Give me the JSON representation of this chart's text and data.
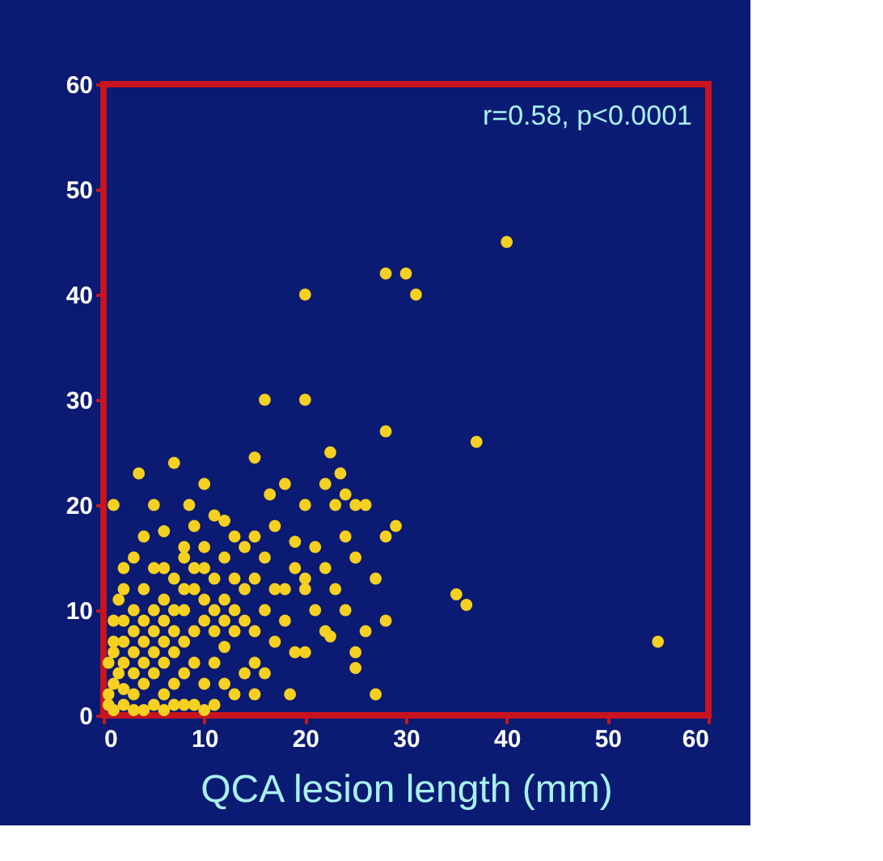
{
  "chart_data": {
    "type": "scatter",
    "xlabel": "QCA lesion length (mm)",
    "annotations": [
      "r=0.58, p<0.0001"
    ],
    "xlim": [
      0,
      60
    ],
    "xticks": [
      0,
      10,
      20,
      30,
      40,
      50,
      60
    ],
    "ylim": [
      0,
      60
    ],
    "yticks": [
      0,
      10,
      20,
      30,
      40,
      50,
      60
    ],
    "grid": false,
    "marker": "circle",
    "series": [
      {
        "color": "#f5d020",
        "x": [
          40,
          28,
          30,
          31,
          20,
          16,
          20,
          28,
          37,
          22.5,
          23.5,
          24,
          3.5,
          7,
          15,
          10,
          1,
          5,
          8.5,
          20,
          23,
          25,
          26,
          22,
          18,
          16.5,
          17,
          19,
          28,
          29,
          35,
          36,
          55,
          27,
          25,
          25,
          18.5,
          22.5,
          20,
          15,
          12,
          14,
          13,
          11,
          12,
          14,
          15,
          10,
          8,
          6,
          4,
          3,
          5,
          7,
          9,
          10,
          8,
          6,
          5,
          4,
          3,
          2,
          1.5,
          1,
          0.5,
          0.5,
          1,
          2,
          3,
          4,
          5,
          6,
          7,
          8,
          9,
          10,
          11,
          12,
          13,
          9,
          8,
          7,
          6,
          5,
          4,
          3,
          2,
          3,
          4,
          5,
          6,
          7,
          6,
          5,
          4,
          3,
          2,
          3,
          4,
          2,
          1,
          1,
          2,
          7,
          8,
          9,
          10,
          11,
          12,
          13,
          14,
          16,
          17,
          18,
          15,
          16,
          10,
          11,
          12,
          9,
          8,
          7,
          6,
          11,
          10,
          13,
          14,
          15,
          18,
          19,
          16,
          20,
          21,
          22,
          19,
          17,
          15,
          13,
          11,
          12,
          6,
          8,
          9,
          20,
          22,
          23,
          24,
          26,
          28,
          24,
          27,
          25,
          21,
          0.5,
          1,
          1.5,
          2
        ],
        "values": [
          45,
          42,
          42,
          40,
          40,
          30,
          30,
          27,
          26,
          25,
          23,
          21,
          23,
          24,
          24.5,
          22,
          20,
          20,
          20,
          20,
          20,
          20,
          20,
          22,
          22,
          21,
          18,
          16.5,
          17,
          18,
          11.5,
          10.5,
          7,
          2,
          4.5,
          6,
          2,
          7.5,
          6,
          5,
          6.5,
          12,
          13,
          13,
          15,
          16,
          17,
          16,
          16,
          17.5,
          17,
          15,
          14,
          13,
          12,
          11,
          10,
          9,
          8,
          7,
          6,
          5,
          4,
          3,
          2,
          1,
          0.5,
          1,
          2,
          3,
          4,
          5,
          6,
          7,
          8,
          9,
          8,
          9,
          8,
          5,
          4,
          3,
          2,
          1,
          0.5,
          0.5,
          2.5,
          4,
          5,
          6,
          7,
          8,
          11,
          10,
          9,
          8,
          7,
          10,
          12,
          12,
          9,
          6,
          9,
          10,
          12,
          14,
          14,
          10,
          11,
          10,
          9,
          10,
          12,
          9,
          8,
          4,
          3,
          5,
          3,
          1,
          1,
          1,
          0.5,
          1,
          0.5,
          2,
          4,
          2,
          12,
          14,
          15,
          12,
          10,
          8,
          6,
          7,
          13,
          17,
          19,
          18.5,
          14,
          15,
          18,
          13,
          14,
          12,
          10,
          8,
          9,
          17,
          13,
          15,
          16,
          5,
          7,
          11,
          14
        ]
      }
    ]
  }
}
